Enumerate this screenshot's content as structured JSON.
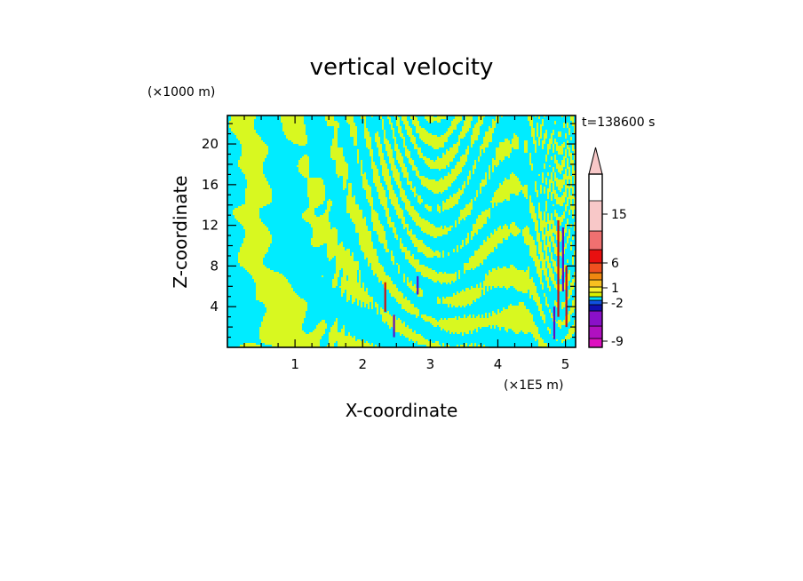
{
  "chart_data": {
    "type": "heatmap",
    "title": "vertical velocity",
    "xlabel": "X-coordinate",
    "ylabel": "Z-coordinate",
    "x_unit": "(×1E5 m)",
    "y_unit": "(×1000 m)",
    "time_label": "t=138600 s",
    "xlim": [
      0,
      5.15
    ],
    "ylim": [
      0,
      22.8
    ],
    "x_ticks": [
      {
        "value": 1,
        "label": "1"
      },
      {
        "value": 2,
        "label": "2"
      },
      {
        "value": 3,
        "label": "3"
      },
      {
        "value": 4,
        "label": "4"
      },
      {
        "value": 5,
        "label": "5"
      }
    ],
    "y_ticks": [
      {
        "value": 4,
        "label": "4"
      },
      {
        "value": 8,
        "label": "8"
      },
      {
        "value": 12,
        "label": "12"
      },
      {
        "value": 16,
        "label": "16"
      },
      {
        "value": 20,
        "label": "20"
      }
    ],
    "colorbar": {
      "levels": [
        -9,
        -2,
        1,
        6,
        15
      ],
      "labels": [
        {
          "level": 15,
          "label": "15"
        },
        {
          "level": 6,
          "label": "6"
        },
        {
          "level": 1,
          "label": "1"
        },
        {
          "level": -2,
          "label": "-2"
        },
        {
          "level": -9,
          "label": "-9"
        }
      ],
      "colors": [
        "#dd10c0",
        "#b010c0",
        "#8a10c8",
        "#1010b0",
        "#1050e0",
        "#00e8f8",
        "#d8f000",
        "#f8f030",
        "#f8c020",
        "#f08810",
        "#f05020",
        "#e81010",
        "#f07070",
        "#f8c8c8"
      ]
    },
    "field_colors": {
      "positive": "#d8f820",
      "negative": "#00ecff",
      "updraft": "#d01010",
      "downdraft": "#6010c0"
    }
  }
}
